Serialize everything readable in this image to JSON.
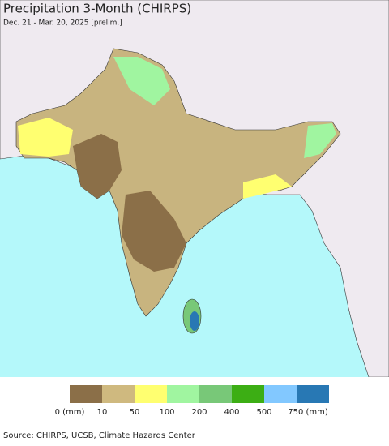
{
  "header": {
    "title": "Precipitation 3-Month (CHIRPS)",
    "subtitle": "Dec. 21 - Mar. 20, 2025 [prelim.]"
  },
  "legend": {
    "labels": [
      "0 (mm)",
      "10",
      "50",
      "100",
      "200",
      "400",
      "500",
      "750 (mm)"
    ],
    "colors": [
      "#8b6f48",
      "#cfb97f",
      "#ffff70",
      "#a0f5a0",
      "#78c878",
      "#3cae14",
      "#82c8ff",
      "#2878b4"
    ]
  },
  "footer": {
    "source": "Source: CHIRPS, UCSB, Climate Hazards Center"
  }
}
